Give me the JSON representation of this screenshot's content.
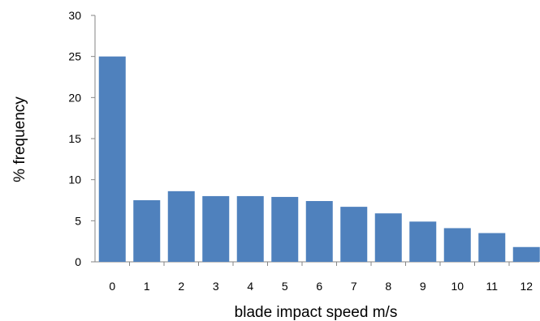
{
  "chart_data": {
    "type": "bar",
    "title": "",
    "xlabel": "blade impact speed m/s",
    "ylabel": "% frequency",
    "categories": [
      "0",
      "1",
      "2",
      "3",
      "4",
      "5",
      "6",
      "7",
      "8",
      "9",
      "10",
      "11",
      "12"
    ],
    "values": [
      25.0,
      7.5,
      8.6,
      8.0,
      8.0,
      7.9,
      7.4,
      6.7,
      5.9,
      4.9,
      4.1,
      3.5,
      1.8
    ],
    "ylim": [
      0,
      30
    ],
    "yticks": [
      "0",
      "5",
      "10",
      "15",
      "20",
      "25",
      "30"
    ],
    "grid": false,
    "legend": "none",
    "bar_color": "#4f81bd"
  }
}
